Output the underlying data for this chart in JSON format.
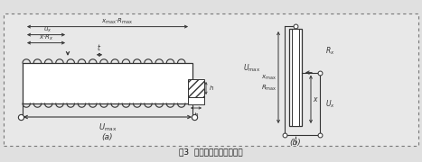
{
  "bg_color": "#e0e0e0",
  "border_color": "#888888",
  "line_color": "#333333",
  "title": "图3  线性线绕电位器示意图",
  "label_a": "(a)",
  "label_b": "(b)"
}
